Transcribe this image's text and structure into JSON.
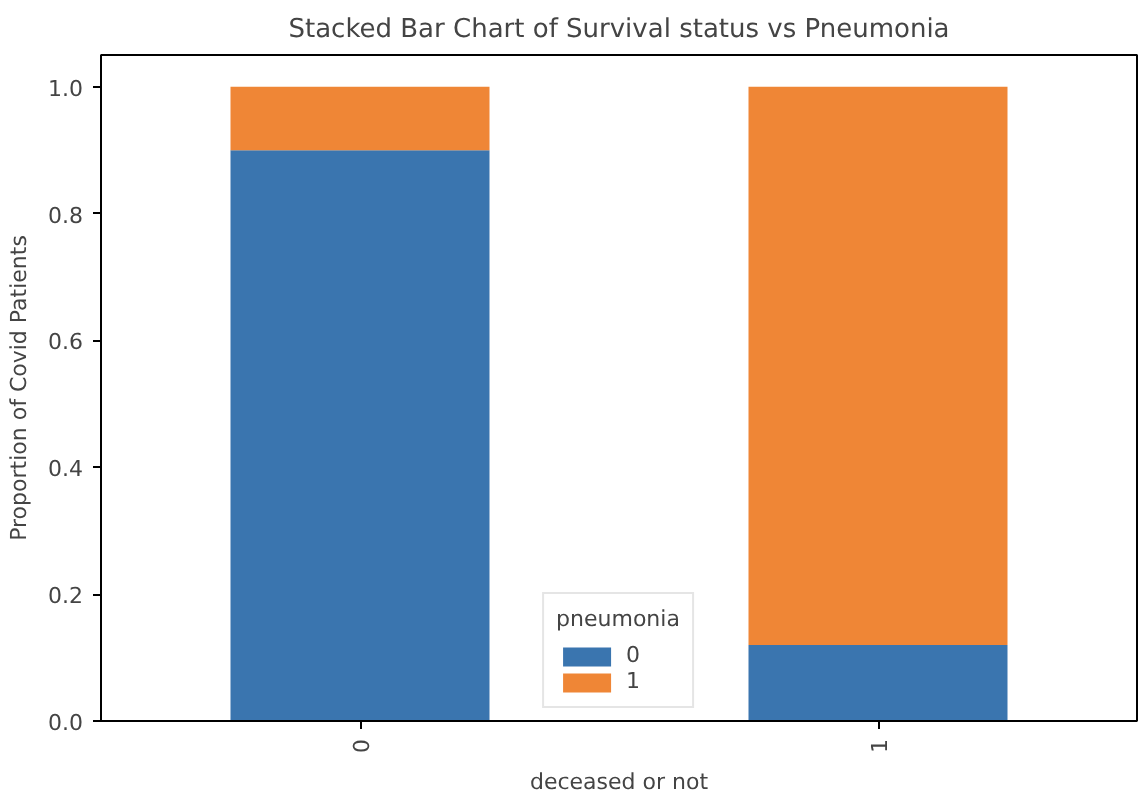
{
  "chart_data": {
    "type": "bar",
    "title": "Stacked Bar Chart of Survival status vs Pneumonia",
    "xlabel": "deceased or not",
    "ylabel": "Proportion of Covid Patients",
    "legend_title": "pneumonia",
    "categories": [
      "0",
      "1"
    ],
    "stacked": true,
    "series": [
      {
        "name": "0",
        "color": "#3a75af",
        "values": [
          0.9,
          0.12
        ]
      },
      {
        "name": "1",
        "color": "#ef8636",
        "values": [
          0.1,
          0.88
        ]
      }
    ],
    "ylim": [
      0,
      1.05
    ],
    "yticks": [
      {
        "value": 0,
        "label": "0.0"
      },
      0.2,
      0.4,
      0.6,
      0.8,
      {
        "value": 1,
        "label": "1.0"
      }
    ],
    "grid": false,
    "legend": "bottom"
  }
}
